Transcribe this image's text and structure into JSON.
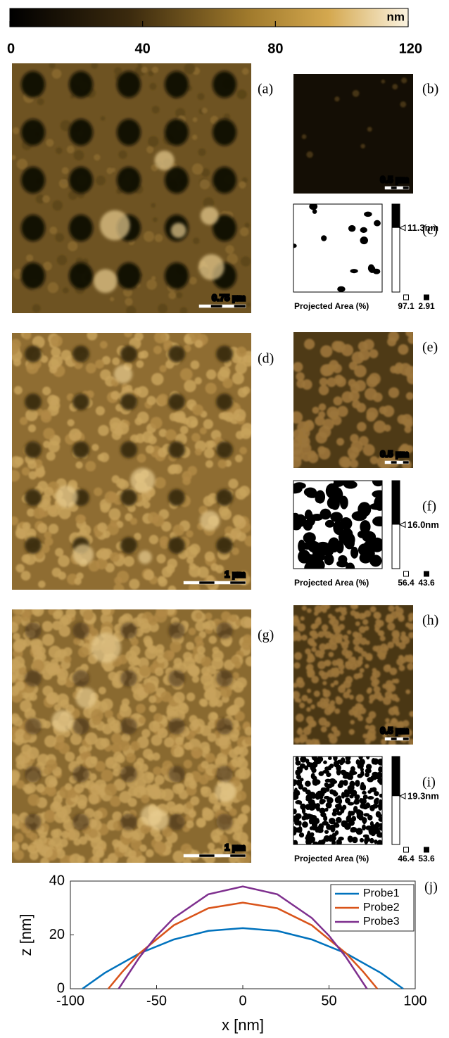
{
  "colorbar": {
    "unit": "nm",
    "lim": [
      0,
      120
    ],
    "ticks": [
      0,
      40,
      80,
      120
    ]
  },
  "rows": [
    {
      "main": {
        "label": "(a)",
        "scale_bar": "0.75 µm"
      },
      "small": {
        "label": "(b)",
        "scale_bar": "0.5 µm"
      },
      "binary": {
        "label": "(c)",
        "threshold": "11.3nm",
        "area_label": "Projected Area (%)",
        "area_values": [
          97.1,
          2.91
        ]
      }
    },
    {
      "main": {
        "label": "(d)",
        "scale_bar": "1 µm"
      },
      "small": {
        "label": "(e)",
        "scale_bar": "0.5 µm"
      },
      "binary": {
        "label": "(f)",
        "threshold": "16.0nm",
        "area_label": "Projected Area (%)",
        "area_values": [
          56.4,
          43.6
        ]
      }
    },
    {
      "main": {
        "label": "(g)",
        "scale_bar": "1 µm"
      },
      "small": {
        "label": "(h)",
        "scale_bar": "0.5 µm"
      },
      "binary": {
        "label": "(i)",
        "threshold": "19.3nm",
        "area_label": "Projected Area (%)",
        "area_values": [
          46.4,
          53.6
        ]
      }
    }
  ],
  "chart_data": {
    "type": "line",
    "panel_label": "(j)",
    "x_label": "x [nm]",
    "y_label": "z [nm]",
    "xlim": [
      -100,
      100
    ],
    "ylim": [
      0,
      40
    ],
    "xticks": [
      -100,
      -50,
      0,
      50,
      100
    ],
    "yticks": [
      0,
      20,
      40
    ],
    "legend": "upper right",
    "series": [
      {
        "name": "Probe1",
        "color": "#0072bd",
        "x": [
          -93,
          -80,
          -60,
          -40,
          -20,
          0,
          20,
          40,
          60,
          80,
          93
        ],
        "values": [
          0,
          5.9,
          13.1,
          18.3,
          21.5,
          22.5,
          21.5,
          18.3,
          13.1,
          5.9,
          0
        ]
      },
      {
        "name": "Probe2",
        "color": "#d95319",
        "x": [
          -78,
          -70,
          -60,
          -40,
          -20,
          0,
          20,
          40,
          60,
          70,
          78
        ],
        "values": [
          0,
          6.2,
          13.1,
          23.6,
          29.9,
          32,
          29.9,
          23.6,
          13.1,
          6.2,
          0
        ]
      },
      {
        "name": "Probe3",
        "color": "#7e2f8e",
        "x": [
          -72,
          -60,
          -50,
          -40,
          -20,
          0,
          20,
          40,
          50,
          60,
          72
        ],
        "values": [
          0,
          11.6,
          19.7,
          26.3,
          35.1,
          38,
          35.1,
          26.3,
          19.7,
          11.6,
          0
        ]
      }
    ]
  }
}
